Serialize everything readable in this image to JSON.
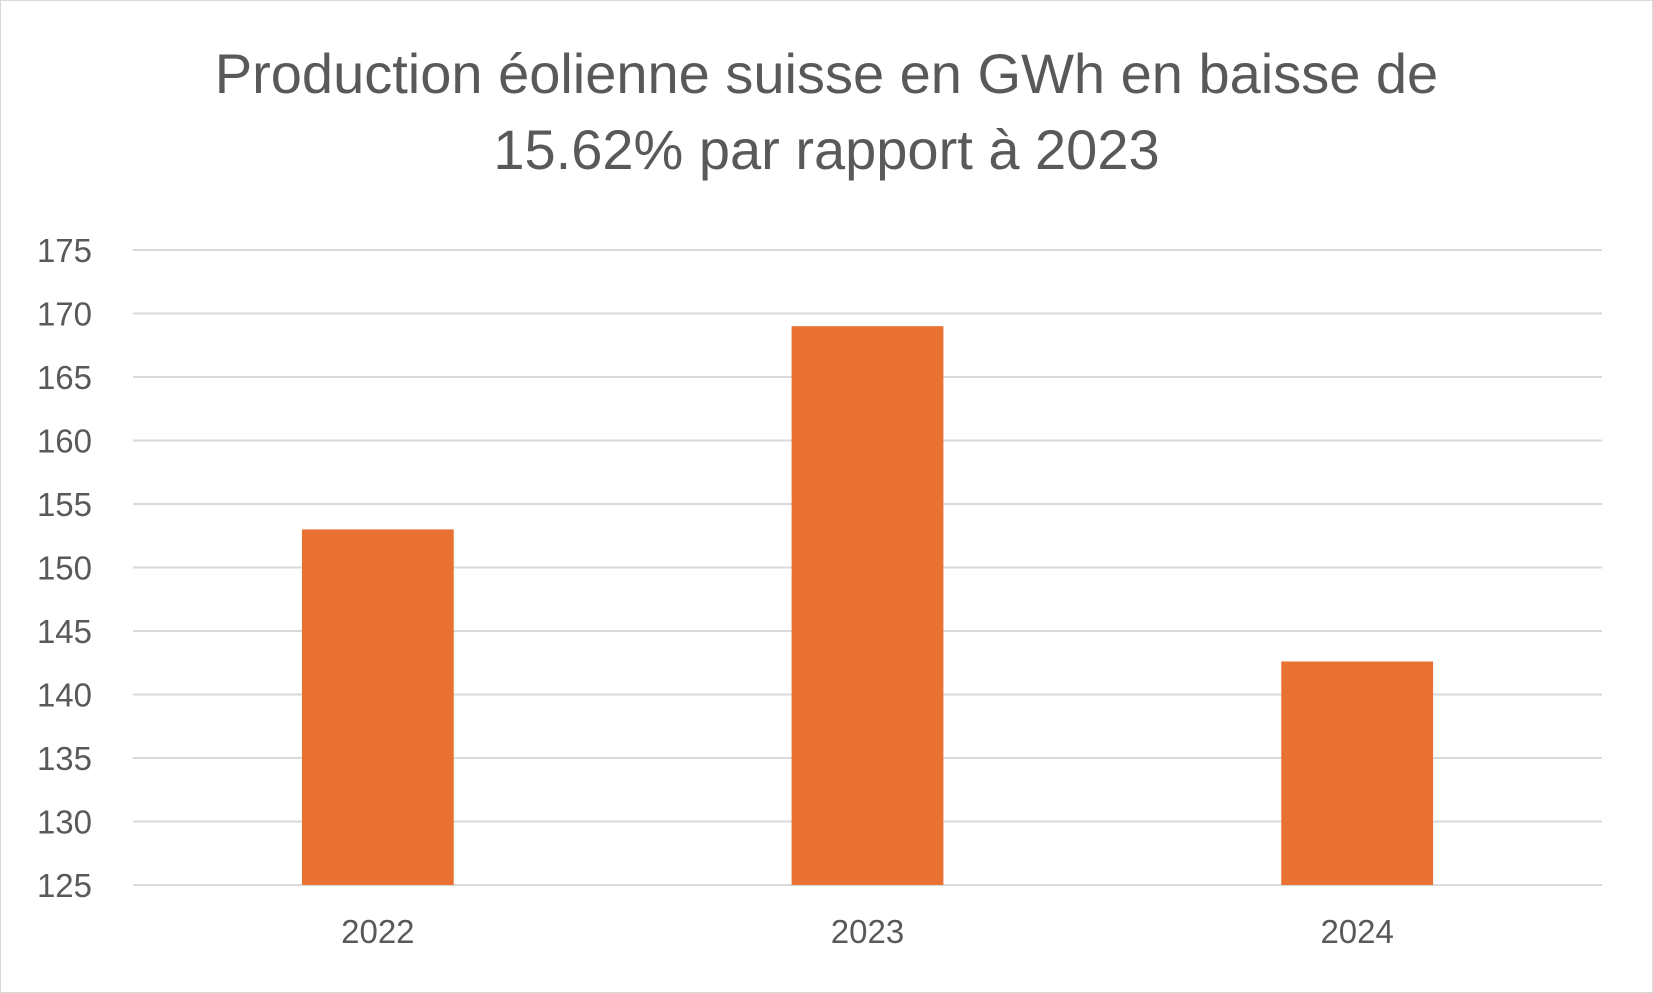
{
  "chart_data": {
    "type": "bar",
    "title_lines": [
      "Production éolienne suisse en GWh en baisse de",
      "15.62% par rapport à 2023"
    ],
    "categories": [
      "2022",
      "2023",
      "2024"
    ],
    "values": [
      153,
      169,
      142.6
    ],
    "ylim": [
      125,
      175
    ],
    "ytick_step": 5,
    "xlabel": "",
    "ylabel": "",
    "grid": true,
    "legend": "none",
    "bar_color": "#E97132",
    "grid_color": "#d9d9d9",
    "text_color": "#595959"
  }
}
